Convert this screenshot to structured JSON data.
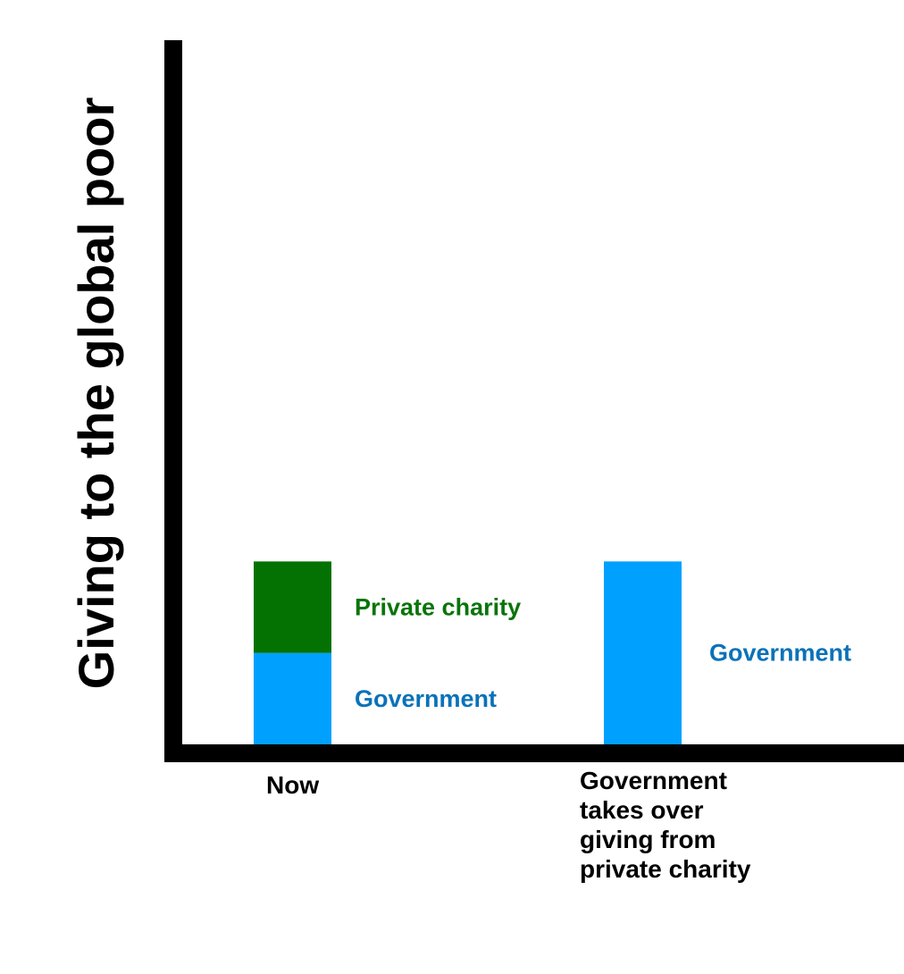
{
  "chart_data": {
    "type": "bar",
    "stacked": true,
    "ylabel": "Giving to the global poor",
    "categories": [
      "Now",
      "Government takes over giving from private charity"
    ],
    "category_lines": [
      [
        "Now"
      ],
      [
        "Government",
        "takes over",
        "giving from",
        "private charity"
      ]
    ],
    "series": [
      {
        "name": "Government",
        "values": [
          1,
          2
        ],
        "color": "#00a0ff",
        "label_color": "#0a72b8"
      },
      {
        "name": "Private charity",
        "values": [
          1,
          0
        ],
        "color": "#037203",
        "label_color": "#0a740a"
      }
    ],
    "ylim": [
      0,
      7.7
    ],
    "grid": false,
    "legend": "none",
    "axis_color": "#000000"
  }
}
